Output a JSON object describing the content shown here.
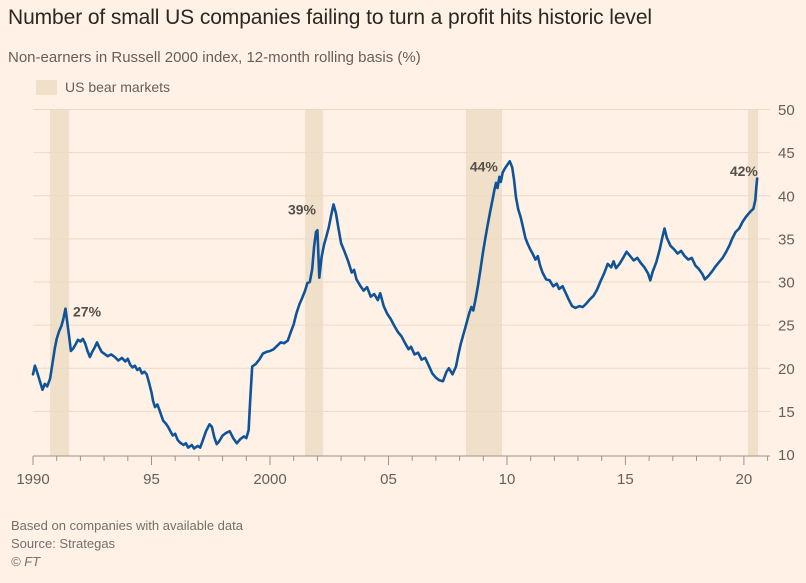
{
  "header": {
    "title": "Number of small US companies failing to turn a profit hits historic level",
    "subtitle": "Non-earners in Russell 2000 index, 12-month rolling basis (%)"
  },
  "legend": {
    "label": "US bear markets",
    "swatch_color": "#F0E0C9"
  },
  "footer": {
    "note": "Based on companies with available data",
    "source": "Source: Strategas",
    "copyright": "© FT"
  },
  "chart_data": {
    "type": "line",
    "title": "Number of small US companies failing to turn a profit hits historic level",
    "subtitle": "Non-earners in Russell 2000 index, 12-month rolling basis (%)",
    "unit": "%",
    "x_domain": [
      1990,
      2021.1
    ],
    "y_domain": [
      10,
      50
    ],
    "y_ticks": [
      10,
      15,
      20,
      25,
      30,
      35,
      40,
      45,
      50
    ],
    "x_ticks": [
      {
        "year": 1990,
        "label": "1990"
      },
      {
        "year": 1995,
        "label": "95"
      },
      {
        "year": 2000,
        "label": "2000"
      },
      {
        "year": 2005,
        "label": "05"
      },
      {
        "year": 2010,
        "label": "10"
      },
      {
        "year": 2015,
        "label": "15"
      },
      {
        "year": 2020,
        "label": "20"
      }
    ],
    "grid": true,
    "legend_position": "top-left",
    "bear_markets": [
      [
        1990.72,
        1991.52
      ],
      [
        2001.48,
        2002.24
      ],
      [
        2008.27,
        2009.79
      ],
      [
        2020.17,
        2020.59
      ]
    ],
    "annotations": [
      {
        "text": "27%",
        "year": 1991.69,
        "value": 26.0,
        "anchor": "start"
      },
      {
        "text": "39%",
        "year": 2001.94,
        "value": 37.8,
        "anchor": "end"
      },
      {
        "text": "44%",
        "year": 2009.62,
        "value": 42.8,
        "anchor": "end"
      },
      {
        "text": "42%",
        "year": 2020.59,
        "value": 42.3,
        "anchor": "end"
      }
    ],
    "colors": {
      "line": "#0F5499",
      "band": "#F0E0C9",
      "grid": "#E9DBC6",
      "axis": "#9B948B",
      "tick_label": "#66605C",
      "annotation": "#55504B"
    },
    "series": [
      {
        "name": "Non-earners in Russell 2000 index (%)",
        "color": "#0F5499",
        "points": [
          [
            1990.0,
            19.3
          ],
          [
            1990.08,
            20.3
          ],
          [
            1990.17,
            19.6
          ],
          [
            1990.28,
            18.6
          ],
          [
            1990.4,
            17.5
          ],
          [
            1990.5,
            18.2
          ],
          [
            1990.6,
            17.9
          ],
          [
            1990.72,
            18.8
          ],
          [
            1990.82,
            20.5
          ],
          [
            1990.92,
            22.3
          ],
          [
            1991.0,
            23.4
          ],
          [
            1991.1,
            24.3
          ],
          [
            1991.2,
            24.9
          ],
          [
            1991.28,
            25.7
          ],
          [
            1991.37,
            26.9
          ],
          [
            1991.45,
            25.2
          ],
          [
            1991.52,
            23.8
          ],
          [
            1991.6,
            22.0
          ],
          [
            1991.7,
            22.3
          ],
          [
            1991.8,
            22.8
          ],
          [
            1991.9,
            23.3
          ],
          [
            1992.0,
            23.1
          ],
          [
            1992.1,
            23.4
          ],
          [
            1992.2,
            22.9
          ],
          [
            1992.3,
            22.0
          ],
          [
            1992.4,
            21.3
          ],
          [
            1992.5,
            21.9
          ],
          [
            1992.6,
            22.4
          ],
          [
            1992.7,
            23.0
          ],
          [
            1992.8,
            22.4
          ],
          [
            1992.9,
            21.9
          ],
          [
            1993.0,
            21.7
          ],
          [
            1993.15,
            21.4
          ],
          [
            1993.3,
            21.6
          ],
          [
            1993.45,
            21.3
          ],
          [
            1993.6,
            20.9
          ],
          [
            1993.75,
            21.2
          ],
          [
            1993.9,
            20.8
          ],
          [
            1994.0,
            21.1
          ],
          [
            1994.1,
            20.4
          ],
          [
            1994.2,
            20.1
          ],
          [
            1994.3,
            20.3
          ],
          [
            1994.4,
            19.8
          ],
          [
            1994.5,
            20.0
          ],
          [
            1994.6,
            19.4
          ],
          [
            1994.7,
            19.6
          ],
          [
            1994.8,
            19.3
          ],
          [
            1994.9,
            18.3
          ],
          [
            1995.0,
            17.2
          ],
          [
            1995.07,
            16.2
          ],
          [
            1995.15,
            15.5
          ],
          [
            1995.25,
            15.8
          ],
          [
            1995.33,
            15.2
          ],
          [
            1995.42,
            14.5
          ],
          [
            1995.5,
            13.9
          ],
          [
            1995.6,
            13.6
          ],
          [
            1995.7,
            13.2
          ],
          [
            1995.8,
            12.7
          ],
          [
            1995.9,
            12.2
          ],
          [
            1996.0,
            12.4
          ],
          [
            1996.1,
            11.7
          ],
          [
            1996.2,
            11.4
          ],
          [
            1996.35,
            11.1
          ],
          [
            1996.45,
            11.3
          ],
          [
            1996.55,
            10.8
          ],
          [
            1996.7,
            11.1
          ],
          [
            1996.8,
            10.7
          ],
          [
            1996.95,
            11.0
          ],
          [
            1997.05,
            10.8
          ],
          [
            1997.15,
            11.5
          ],
          [
            1997.3,
            12.7
          ],
          [
            1997.45,
            13.5
          ],
          [
            1997.55,
            13.2
          ],
          [
            1997.65,
            12.0
          ],
          [
            1997.75,
            11.2
          ],
          [
            1997.85,
            11.5
          ],
          [
            1998.0,
            12.2
          ],
          [
            1998.15,
            12.5
          ],
          [
            1998.3,
            12.7
          ],
          [
            1998.45,
            11.9
          ],
          [
            1998.6,
            11.3
          ],
          [
            1998.75,
            11.8
          ],
          [
            1998.9,
            12.1
          ],
          [
            1999.0,
            11.9
          ],
          [
            1999.1,
            12.8
          ],
          [
            1999.17,
            16.5
          ],
          [
            1999.25,
            20.2
          ],
          [
            1999.4,
            20.5
          ],
          [
            1999.55,
            21.0
          ],
          [
            1999.7,
            21.7
          ],
          [
            1999.85,
            21.9
          ],
          [
            2000.0,
            22.0
          ],
          [
            2000.15,
            22.2
          ],
          [
            2000.3,
            22.6
          ],
          [
            2000.45,
            23.0
          ],
          [
            2000.6,
            22.9
          ],
          [
            2000.75,
            23.2
          ],
          [
            2000.88,
            24.2
          ],
          [
            2001.0,
            25.1
          ],
          [
            2001.12,
            26.4
          ],
          [
            2001.24,
            27.4
          ],
          [
            2001.35,
            28.1
          ],
          [
            2001.48,
            29.0
          ],
          [
            2001.58,
            29.9
          ],
          [
            2001.68,
            30.0
          ],
          [
            2001.78,
            31.5
          ],
          [
            2001.86,
            34.1
          ],
          [
            2001.94,
            35.8
          ],
          [
            2002.0,
            36.0
          ],
          [
            2002.08,
            30.5
          ],
          [
            2002.18,
            32.9
          ],
          [
            2002.28,
            34.3
          ],
          [
            2002.38,
            35.3
          ],
          [
            2002.48,
            36.3
          ],
          [
            2002.58,
            37.7
          ],
          [
            2002.68,
            39.0
          ],
          [
            2002.78,
            38.0
          ],
          [
            2002.88,
            36.4
          ],
          [
            2003.0,
            34.5
          ],
          [
            2003.15,
            33.5
          ],
          [
            2003.3,
            32.4
          ],
          [
            2003.45,
            31.1
          ],
          [
            2003.55,
            31.4
          ],
          [
            2003.65,
            30.3
          ],
          [
            2003.8,
            29.6
          ],
          [
            2003.95,
            29.0
          ],
          [
            2004.1,
            29.4
          ],
          [
            2004.25,
            28.3
          ],
          [
            2004.4,
            28.6
          ],
          [
            2004.55,
            27.9
          ],
          [
            2004.65,
            28.7
          ],
          [
            2004.8,
            27.2
          ],
          [
            2004.95,
            26.3
          ],
          [
            2005.1,
            25.7
          ],
          [
            2005.25,
            24.9
          ],
          [
            2005.4,
            24.2
          ],
          [
            2005.55,
            23.7
          ],
          [
            2005.7,
            22.9
          ],
          [
            2005.85,
            22.2
          ],
          [
            2005.95,
            22.5
          ],
          [
            2006.1,
            21.6
          ],
          [
            2006.25,
            21.8
          ],
          [
            2006.4,
            21.0
          ],
          [
            2006.55,
            21.2
          ],
          [
            2006.7,
            20.3
          ],
          [
            2006.85,
            19.4
          ],
          [
            2007.0,
            18.9
          ],
          [
            2007.15,
            18.6
          ],
          [
            2007.3,
            18.5
          ],
          [
            2007.45,
            19.6
          ],
          [
            2007.55,
            20.0
          ],
          [
            2007.7,
            19.3
          ],
          [
            2007.85,
            20.2
          ],
          [
            2007.95,
            21.6
          ],
          [
            2008.05,
            22.8
          ],
          [
            2008.15,
            23.8
          ],
          [
            2008.27,
            25.0
          ],
          [
            2008.4,
            26.3
          ],
          [
            2008.5,
            27.1
          ],
          [
            2008.58,
            26.7
          ],
          [
            2008.68,
            28.1
          ],
          [
            2008.78,
            29.6
          ],
          [
            2008.88,
            31.4
          ],
          [
            2008.98,
            33.3
          ],
          [
            2009.08,
            35.0
          ],
          [
            2009.18,
            36.5
          ],
          [
            2009.28,
            38.0
          ],
          [
            2009.38,
            39.4
          ],
          [
            2009.48,
            40.8
          ],
          [
            2009.54,
            41.5
          ],
          [
            2009.6,
            40.9
          ],
          [
            2009.68,
            42.2
          ],
          [
            2009.74,
            41.6
          ],
          [
            2009.82,
            42.7
          ],
          [
            2009.92,
            43.2
          ],
          [
            2010.02,
            43.6
          ],
          [
            2010.12,
            44.0
          ],
          [
            2010.22,
            43.3
          ],
          [
            2010.3,
            41.8
          ],
          [
            2010.38,
            39.8
          ],
          [
            2010.48,
            38.4
          ],
          [
            2010.58,
            37.5
          ],
          [
            2010.68,
            36.3
          ],
          [
            2010.78,
            35.1
          ],
          [
            2010.88,
            34.4
          ],
          [
            2010.98,
            33.8
          ],
          [
            2011.1,
            33.2
          ],
          [
            2011.2,
            32.6
          ],
          [
            2011.3,
            33.0
          ],
          [
            2011.4,
            31.9
          ],
          [
            2011.5,
            31.1
          ],
          [
            2011.65,
            30.3
          ],
          [
            2011.8,
            30.2
          ],
          [
            2011.95,
            29.5
          ],
          [
            2012.1,
            29.8
          ],
          [
            2012.2,
            29.2
          ],
          [
            2012.35,
            29.5
          ],
          [
            2012.5,
            28.6
          ],
          [
            2012.6,
            28.0
          ],
          [
            2012.75,
            27.2
          ],
          [
            2012.9,
            27.0
          ],
          [
            2013.05,
            27.2
          ],
          [
            2013.2,
            27.1
          ],
          [
            2013.35,
            27.5
          ],
          [
            2013.5,
            28.0
          ],
          [
            2013.65,
            28.4
          ],
          [
            2013.8,
            29.1
          ],
          [
            2013.95,
            30.1
          ],
          [
            2014.1,
            31.0
          ],
          [
            2014.25,
            32.1
          ],
          [
            2014.4,
            31.7
          ],
          [
            2014.5,
            32.4
          ],
          [
            2014.6,
            31.6
          ],
          [
            2014.75,
            32.1
          ],
          [
            2014.9,
            32.8
          ],
          [
            2015.05,
            33.5
          ],
          [
            2015.2,
            33.0
          ],
          [
            2015.35,
            32.5
          ],
          [
            2015.5,
            32.8
          ],
          [
            2015.65,
            32.2
          ],
          [
            2015.8,
            31.7
          ],
          [
            2015.95,
            31.0
          ],
          [
            2016.05,
            30.2
          ],
          [
            2016.15,
            31.2
          ],
          [
            2016.3,
            32.3
          ],
          [
            2016.45,
            33.8
          ],
          [
            2016.55,
            35.1
          ],
          [
            2016.65,
            36.2
          ],
          [
            2016.75,
            35.1
          ],
          [
            2016.9,
            34.2
          ],
          [
            2017.05,
            33.8
          ],
          [
            2017.2,
            33.3
          ],
          [
            2017.35,
            33.6
          ],
          [
            2017.5,
            33.0
          ],
          [
            2017.65,
            32.6
          ],
          [
            2017.8,
            32.8
          ],
          [
            2017.95,
            31.9
          ],
          [
            2018.1,
            31.5
          ],
          [
            2018.25,
            30.9
          ],
          [
            2018.35,
            30.3
          ],
          [
            2018.5,
            30.7
          ],
          [
            2018.65,
            31.2
          ],
          [
            2018.8,
            31.8
          ],
          [
            2018.95,
            32.3
          ],
          [
            2019.1,
            32.8
          ],
          [
            2019.25,
            33.5
          ],
          [
            2019.4,
            34.3
          ],
          [
            2019.5,
            35.0
          ],
          [
            2019.65,
            35.8
          ],
          [
            2019.8,
            36.2
          ],
          [
            2019.95,
            37.0
          ],
          [
            2020.1,
            37.6
          ],
          [
            2020.25,
            38.1
          ],
          [
            2020.4,
            38.5
          ],
          [
            2020.48,
            39.5
          ],
          [
            2020.52,
            41.0
          ],
          [
            2020.56,
            42.0
          ]
        ]
      }
    ]
  }
}
